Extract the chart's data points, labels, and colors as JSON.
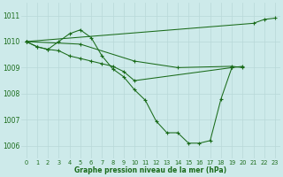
{
  "title": "Graphe pression niveau de la mer (hPa)",
  "background_color": "#cdeaea",
  "line_color": "#1a6b1a",
  "grid_color": "#b8d8d8",
  "xlim": [
    -0.5,
    23.5
  ],
  "ylim": [
    1005.5,
    1011.5
  ],
  "yticks": [
    1006,
    1007,
    1008,
    1009,
    1010,
    1011
  ],
  "xticks": [
    0,
    1,
    2,
    3,
    4,
    5,
    6,
    7,
    8,
    9,
    10,
    11,
    12,
    13,
    14,
    15,
    16,
    17,
    18,
    19,
    20,
    21,
    22,
    23
  ],
  "series": [
    [
      0,
      1010.0,
      1,
      1009.8,
      2,
      1009.7,
      3,
      1010.0,
      4,
      1010.3,
      5,
      1010.45,
      6,
      1010.15,
      7,
      1009.45,
      8,
      1008.95,
      9,
      1008.65,
      10,
      1008.15,
      11,
      1007.75,
      12,
      1006.95,
      13,
      1006.5,
      14,
      1006.5,
      15,
      1006.1,
      16,
      1006.1,
      17,
      1006.2,
      18,
      1007.8,
      19,
      1009.0
    ],
    [
      0,
      1010.0,
      1,
      1009.8,
      2,
      1009.7,
      3,
      1009.65,
      4,
      1009.45,
      5,
      1009.35,
      6,
      1009.25,
      7,
      1009.15,
      8,
      1009.05,
      9,
      1008.85,
      10,
      1008.5,
      19,
      1009.0,
      20,
      1009.05
    ],
    [
      0,
      1010.0,
      5,
      1009.9,
      10,
      1009.25,
      14,
      1009.0,
      19,
      1009.05,
      20,
      1009.0
    ],
    [
      0,
      1010.0,
      21,
      1010.7,
      22,
      1010.85,
      23,
      1010.9
    ]
  ]
}
